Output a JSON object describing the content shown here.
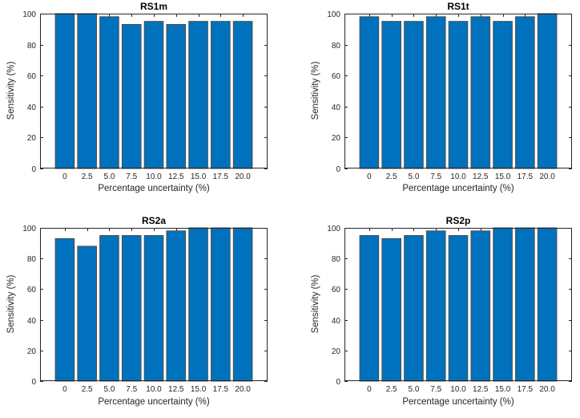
{
  "figure": {
    "background_color": "#ffffff",
    "bar_fill_color": "#0072BD",
    "bar_edge_color": "#4d4d4d",
    "axis_color": "#262626",
    "tick_label_color": "#262626",
    "title_color": "#000000"
  },
  "chart_data": [
    {
      "type": "bar",
      "title": "RS1m",
      "xlabel": "Percentage uncertainty (%)",
      "ylabel": "Sensitivity (%)",
      "categories": [
        "0",
        "2.5",
        "5.0",
        "7.5",
        "10.0",
        "12.5",
        "15.0",
        "17.5",
        "20.0"
      ],
      "values": [
        100,
        100,
        98,
        93,
        95,
        93,
        95,
        95,
        95
      ],
      "ylim": [
        0,
        100
      ],
      "yticks": [
        0,
        20,
        40,
        60,
        80,
        100
      ],
      "grid": false,
      "legend": "none",
      "position": "top-left"
    },
    {
      "type": "bar",
      "title": "RS1t",
      "xlabel": "Percentage uncertainty (%)",
      "ylabel": "Sensitivity (%)",
      "categories": [
        "0",
        "2.5",
        "5.0",
        "7.5",
        "10.0",
        "12.5",
        "15.0",
        "17.5",
        "20.0"
      ],
      "values": [
        98,
        95,
        95,
        98,
        95,
        98,
        95,
        98,
        100
      ],
      "ylim": [
        0,
        100
      ],
      "yticks": [
        0,
        20,
        40,
        60,
        80,
        100
      ],
      "grid": false,
      "legend": "none",
      "position": "top-right"
    },
    {
      "type": "bar",
      "title": "RS2a",
      "xlabel": "Percentage uncertainty (%)",
      "ylabel": "Sensitivity (%)",
      "categories": [
        "0",
        "2.5",
        "5.0",
        "7.5",
        "10.0",
        "12.5",
        "15.0",
        "17.5",
        "20.0"
      ],
      "values": [
        93,
        88,
        95,
        95,
        95,
        98,
        100,
        100,
        100
      ],
      "ylim": [
        0,
        100
      ],
      "yticks": [
        0,
        20,
        40,
        60,
        80,
        100
      ],
      "grid": false,
      "legend": "none",
      "position": "bottom-left"
    },
    {
      "type": "bar",
      "title": "RS2p",
      "xlabel": "Percentage uncertainty (%)",
      "ylabel": "Sensitivity (%)",
      "categories": [
        "0",
        "2.5",
        "5.0",
        "7.5",
        "10.0",
        "12.5",
        "15.0",
        "17.5",
        "20.0"
      ],
      "values": [
        95,
        93,
        95,
        98,
        95,
        98,
        100,
        100,
        100
      ],
      "ylim": [
        0,
        100
      ],
      "yticks": [
        0,
        20,
        40,
        60,
        80,
        100
      ],
      "grid": false,
      "legend": "none",
      "position": "bottom-right"
    }
  ]
}
